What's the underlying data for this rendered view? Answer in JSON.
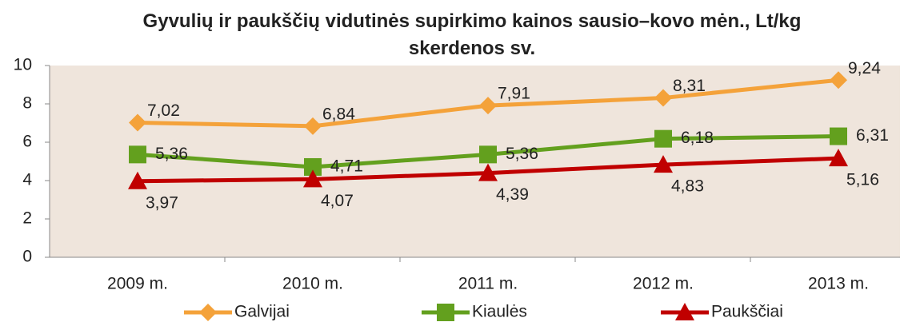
{
  "chart_data": {
    "type": "line",
    "title": "Gyvulių ir paukščių vidutinės supirkimo kainos sausio–kovo mėn., Lt/kg skerdenos sv.",
    "categories": [
      "2009 m.",
      "2010 m.",
      "2011 m.",
      "2012 m.",
      "2013 m."
    ],
    "series": [
      {
        "name": "Galvijai",
        "color": "#f4a23a",
        "values": [
          7.02,
          6.84,
          7.91,
          8.31,
          9.24
        ],
        "value_labels": [
          "7,02",
          "6,84",
          "7,91",
          "8,31",
          "9,24"
        ]
      },
      {
        "name": "Kiaulės",
        "color": "#63a01e",
        "values": [
          5.36,
          4.71,
          5.36,
          6.18,
          6.31
        ],
        "value_labels": [
          "5,36",
          "4,71",
          "5,36",
          "6,18",
          "6,31"
        ]
      },
      {
        "name": "Paukščiai",
        "color": "#c00000",
        "values": [
          3.97,
          4.07,
          4.39,
          4.83,
          5.16
        ],
        "value_labels": [
          "3,97",
          "4,07",
          "4,39",
          "4,83",
          "5,16"
        ]
      }
    ],
    "ylim": [
      0,
      10
    ],
    "yticks": [
      0,
      2,
      4,
      6,
      8,
      10
    ],
    "legend": "bottom"
  }
}
